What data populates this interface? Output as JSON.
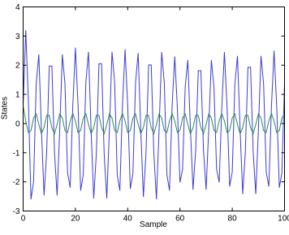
{
  "chart_data": {
    "type": "line",
    "x_label": "Sample",
    "y_label": "States",
    "x": [
      0,
      1,
      2,
      3,
      4,
      5,
      6,
      7,
      8,
      9,
      10,
      11,
      12,
      13,
      14,
      15,
      16,
      17,
      18,
      19,
      20,
      21,
      22,
      23,
      24,
      25,
      26,
      27,
      28,
      29,
      30,
      31,
      32,
      33,
      34,
      35,
      36,
      37,
      38,
      39,
      40,
      41,
      42,
      43,
      44,
      45,
      46,
      47,
      48,
      49,
      50,
      51,
      52,
      53,
      54,
      55,
      56,
      57,
      58,
      59,
      60,
      61,
      62,
      63,
      64,
      65,
      66,
      67,
      68,
      69,
      70,
      71,
      72,
      73,
      74,
      75,
      76,
      77,
      78,
      79,
      80,
      81,
      82,
      83,
      84,
      85,
      86,
      87,
      88,
      89,
      90,
      91,
      92,
      93,
      94,
      95,
      96,
      97,
      98,
      99,
      100
    ],
    "series": [
      {
        "color": "#3b3bd6",
        "values": [
          0.61,
          3.2,
          0.8,
          -2.6,
          -2.0,
          1.37,
          2.37,
          -0.21,
          -2.47,
          -1.0,
          1.97,
          1.97,
          -1.0,
          -2.47,
          -0.21,
          2.37,
          1.37,
          -1.69,
          -2.2,
          0.61,
          2.6,
          0.64,
          -2.3,
          -1.76,
          1.42,
          2.46,
          -0.22,
          -2.57,
          -1.04,
          2.05,
          2.05,
          -1.04,
          -2.57,
          -0.22,
          2.46,
          1.42,
          -1.76,
          -2.3,
          0.64,
          2.55,
          0.62,
          -2.24,
          -1.72,
          1.4,
          2.42,
          -0.21,
          -2.52,
          -1.02,
          2.01,
          2.01,
          -1.02,
          -2.6,
          -0.22,
          2.45,
          1.4,
          -1.75,
          -2.3,
          0.62,
          2.3,
          0.56,
          -2.02,
          -1.56,
          1.26,
          2.18,
          -0.19,
          -2.27,
          -0.92,
          1.81,
          1.81,
          -0.92,
          -2.27,
          -0.19,
          2.18,
          1.26,
          -1.56,
          -2.02,
          0.56,
          2.45,
          0.6,
          -2.16,
          -1.66,
          1.34,
          2.32,
          -0.2,
          -2.42,
          -0.98,
          1.93,
          1.93,
          -0.98,
          -2.42,
          -0.2,
          2.32,
          1.34,
          -1.66,
          -2.16,
          0.6,
          2.5,
          0.61,
          -2.2,
          -1.69,
          1.37
        ]
      },
      {
        "color": "#2a8a4a",
        "values": [
          0.6,
          0.09,
          -0.31,
          -0.24,
          0.19,
          0.33,
          -0.03,
          -0.35,
          -0.14,
          0.28,
          0.28,
          -0.14,
          -0.35,
          -0.03,
          0.33,
          0.19,
          -0.24,
          -0.31,
          0.09,
          0.35,
          0.09,
          -0.31,
          -0.24,
          0.19,
          0.33,
          -0.03,
          -0.35,
          -0.14,
          0.28,
          0.28,
          -0.14,
          -0.35,
          -0.03,
          0.33,
          0.19,
          -0.24,
          -0.31,
          0.09,
          0.35,
          0.09,
          -0.31,
          -0.24,
          0.19,
          0.33,
          -0.03,
          -0.35,
          -0.14,
          0.28,
          0.28,
          -0.14,
          -0.35,
          -0.03,
          0.33,
          0.19,
          -0.24,
          -0.31,
          0.09,
          0.35,
          0.09,
          -0.31,
          -0.24,
          0.19,
          0.33,
          -0.03,
          -0.35,
          -0.14,
          0.28,
          0.28,
          -0.14,
          -0.35,
          -0.03,
          0.33,
          0.19,
          -0.24,
          -0.31,
          0.09,
          0.35,
          0.09,
          -0.31,
          -0.24,
          0.19,
          0.33,
          -0.03,
          -0.35,
          -0.14,
          0.28,
          0.28,
          -0.14,
          -0.35,
          -0.03,
          0.33,
          0.19,
          -0.24,
          -0.31,
          0.09,
          0.35,
          0.09,
          -0.31,
          -0.24,
          0.19,
          0.33
        ]
      }
    ],
    "xlim": [
      0,
      100
    ],
    "ylim": [
      -3,
      4
    ],
    "xticks": [
      0,
      20,
      40,
      60,
      80,
      100
    ],
    "yticks": [
      -3,
      -2,
      -1,
      0,
      1,
      2,
      3,
      4
    ]
  }
}
